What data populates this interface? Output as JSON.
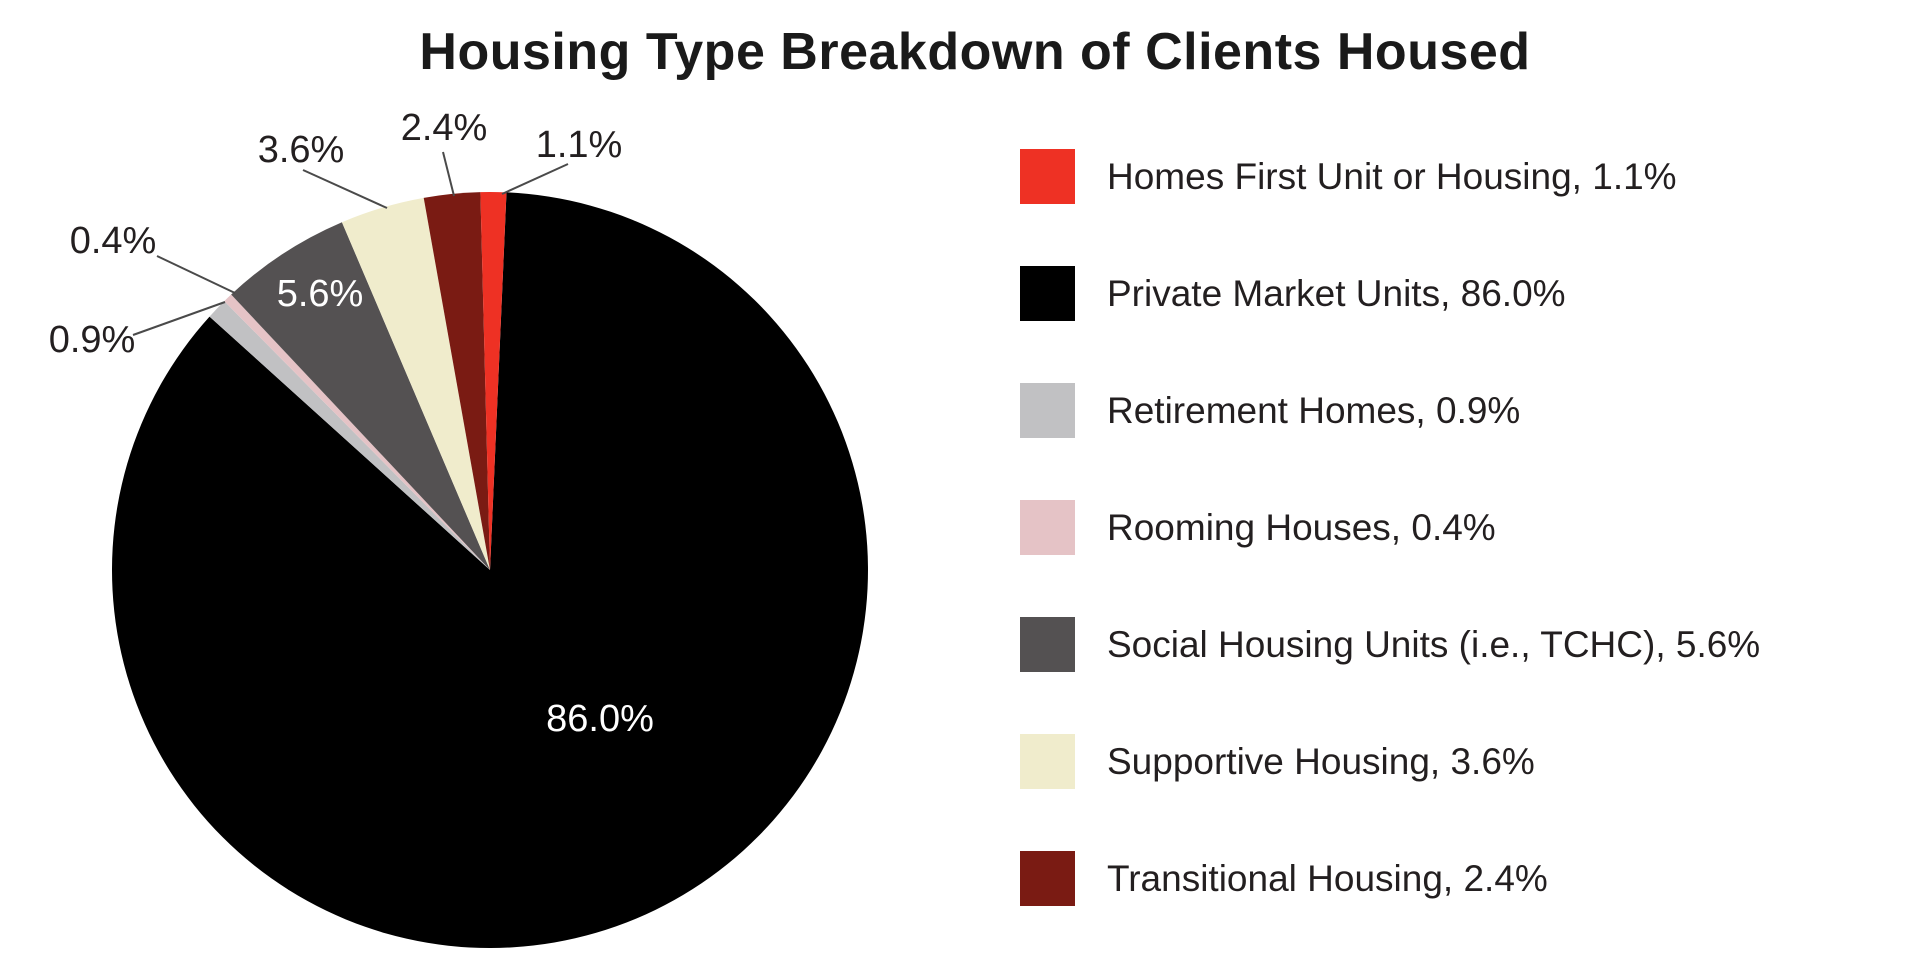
{
  "chart_data": {
    "type": "pie",
    "title": "Housing Type Breakdown of Clients Housed",
    "pie": {
      "center": [
        490,
        570
      ],
      "radius": 378,
      "rotation_deg": 2.5,
      "direction": "clockwise",
      "start_position": "top"
    },
    "slices": [
      {
        "id": "private-market-units",
        "label": "Private Market Units",
        "value": 86.0,
        "display": "86.0%",
        "color": "#000000",
        "label_placement": "inside",
        "label_color": "#ffffff",
        "label_pos": [
          600,
          719
        ]
      },
      {
        "id": "retirement-homes",
        "label": "Retirement Homes",
        "value": 0.9,
        "display": "0.9%",
        "color": "#C1C1C3",
        "label_placement": "outside",
        "label_color": "#231F20",
        "label_pos": [
          92,
          340
        ],
        "leader": [
          [
            225,
            302
          ],
          [
            133,
            335
          ]
        ]
      },
      {
        "id": "rooming-houses",
        "label": "Rooming Houses",
        "value": 0.4,
        "display": "0.4%",
        "color": "#E5C3C6",
        "label_placement": "outside",
        "label_color": "#231F20",
        "label_pos": [
          113,
          241
        ],
        "leader": [
          [
            235,
            293
          ],
          [
            157,
            256
          ]
        ]
      },
      {
        "id": "social-housing-units",
        "label": "Social Housing Units (i.e., TCHC)",
        "value": 5.6,
        "display": "5.6%",
        "color": "#545152",
        "label_placement": "inside",
        "label_color": "#ffffff",
        "label_pos": [
          320,
          294
        ]
      },
      {
        "id": "supportive-housing",
        "label": "Supportive Housing",
        "value": 3.6,
        "display": "3.6%",
        "color": "#F0ECCC",
        "label_placement": "outside",
        "label_color": "#231F20",
        "label_pos": [
          301,
          150
        ],
        "leader": [
          [
            387,
            208
          ],
          [
            303,
            170
          ]
        ]
      },
      {
        "id": "transitional-housing",
        "label": "Transitional Housing",
        "value": 2.4,
        "display": "2.4%",
        "color": "#7A1B13",
        "label_placement": "outside",
        "label_color": "#231F20",
        "label_pos": [
          444,
          128
        ],
        "leader": [
          [
            454,
            196
          ],
          [
            443,
            152
          ]
        ]
      },
      {
        "id": "homes-first-unit-or-housing",
        "label": "Homes First Unit or Housing",
        "value": 1.1,
        "display": "1.1%",
        "color": "#EE3124",
        "label_placement": "outside",
        "label_color": "#231F20",
        "label_pos": [
          579,
          145
        ],
        "leader": [
          [
            502,
            194
          ],
          [
            568,
            164
          ]
        ]
      }
    ],
    "legend": {
      "position": "right",
      "items": [
        {
          "label": "Homes First Unit or Housing, 1.1%",
          "color": "#EE3124"
        },
        {
          "label": "Private Market Units, 86.0%",
          "color": "#000000"
        },
        {
          "label": "Retirement Homes, 0.9%",
          "color": "#C1C1C3"
        },
        {
          "label": "Rooming Houses, 0.4%",
          "color": "#E5C3C6"
        },
        {
          "label": "Social Housing Units (i.e., TCHC), 5.6%",
          "color": "#545152"
        },
        {
          "label": "Supportive Housing, 3.6%",
          "color": "#F0ECCC"
        },
        {
          "label": "Transitional Housing, 2.4%",
          "color": "#7A1B13"
        }
      ]
    },
    "style": {
      "background": "#ffffff",
      "title_color": "#1a1a1a",
      "text_color": "#231F20",
      "leader_line_color": "#4a4a4a"
    }
  }
}
